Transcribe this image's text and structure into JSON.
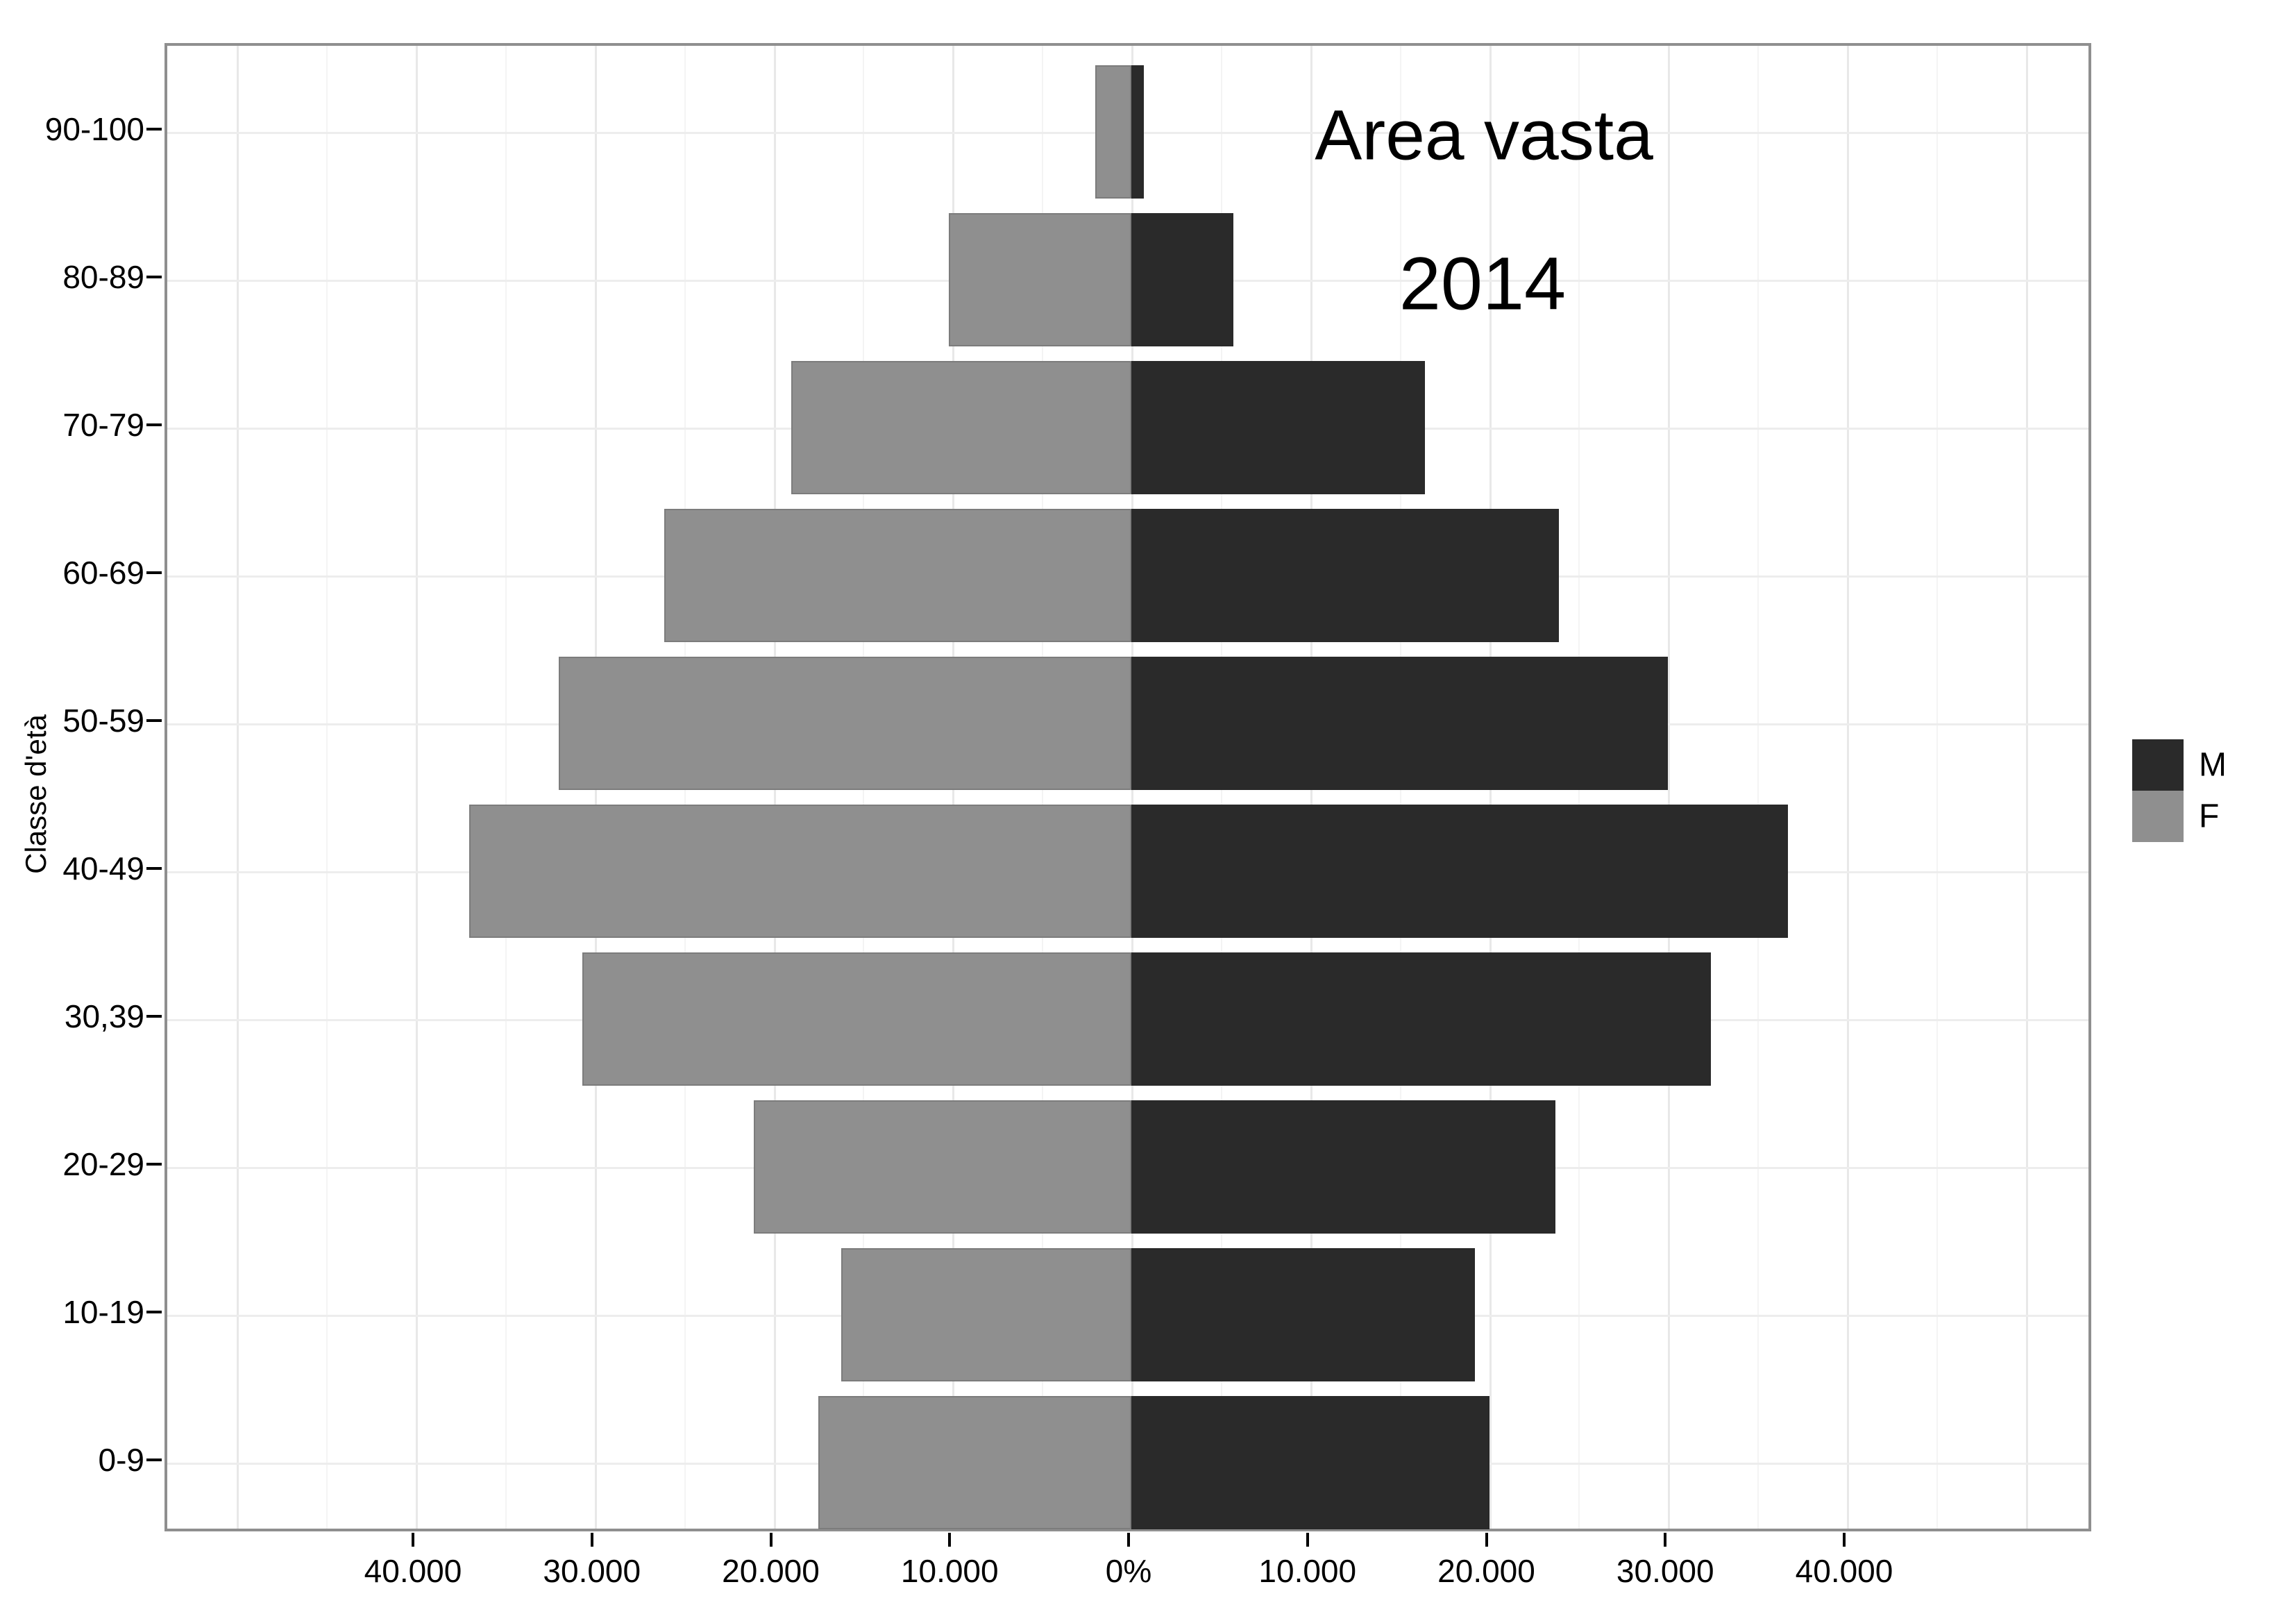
{
  "title": {
    "line1": "Area vasta",
    "line2": "2014"
  },
  "y_axis": {
    "title": "Classe d'età"
  },
  "legend": {
    "items": [
      {
        "label": "M",
        "color": "#2a2a2a"
      },
      {
        "label": "F",
        "color": "#8f8f8f"
      }
    ]
  },
  "chart_data": {
    "type": "bar",
    "subtype": "population-pyramid",
    "title": "Area vasta",
    "subtitle": "2014",
    "ylabel": "Classe d'età",
    "categories_top_to_bottom": [
      "90-100",
      "80-89",
      "70-79",
      "60-69",
      "50-59",
      "40-49",
      "30,39",
      "20-29",
      "10-19",
      "0-9"
    ],
    "series": [
      {
        "name": "M",
        "side": "right",
        "color": "#2a2a2a",
        "values": [
          700,
          5700,
          16400,
          23900,
          30000,
          36700,
          32400,
          23700,
          19200,
          20000
        ]
      },
      {
        "name": "F",
        "side": "left",
        "color": "#8f8f8f",
        "values": [
          2000,
          10200,
          19000,
          26100,
          32000,
          37000,
          30700,
          21100,
          16200,
          17500
        ]
      }
    ],
    "x_axis": {
      "tick_values": [
        -40000,
        -30000,
        -20000,
        -10000,
        0,
        10000,
        20000,
        30000,
        40000
      ],
      "tick_labels": [
        "40.000",
        "30.000",
        "20.000",
        "10.000",
        "0%",
        "10.000",
        "20.000",
        "30.000",
        "40.000"
      ],
      "range": [
        -53900,
        53900
      ],
      "major_grid_step": 10000,
      "minor_grid_step": 5000
    },
    "grid": {
      "major_color": "#e8e8e8",
      "minor_color": "#f4f4f4",
      "on": true
    },
    "legend_position": "right"
  }
}
